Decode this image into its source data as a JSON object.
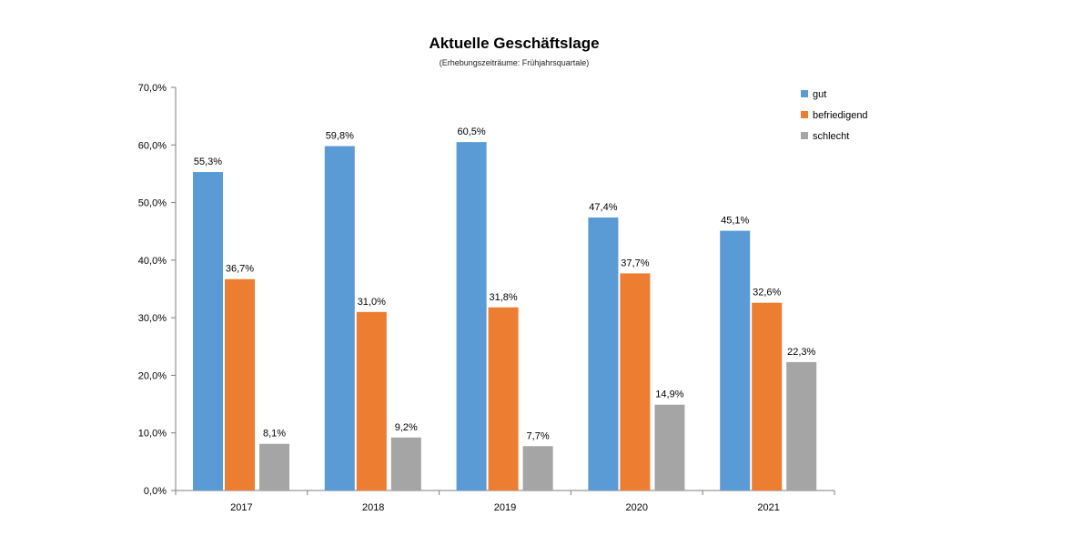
{
  "chart_data": {
    "type": "bar",
    "title": "Aktuelle Geschäftslage",
    "subtitle": "(Erhebungszeiträume: Frühjahrsquartale)",
    "categories": [
      "2017",
      "2018",
      "2019",
      "2020",
      "2021"
    ],
    "series": [
      {
        "name": "gut",
        "color": "#5b9bd5",
        "values": [
          55.3,
          59.8,
          60.5,
          47.4,
          45.1
        ],
        "labels": [
          "55,3%",
          "59,8%",
          "60,5%",
          "47,4%",
          "45,1%"
        ]
      },
      {
        "name": "befriedigend",
        "color": "#ed7d31",
        "values": [
          36.7,
          31.0,
          31.8,
          37.7,
          32.6
        ],
        "labels": [
          "36,7%",
          "31,0%",
          "31,8%",
          "37,7%",
          "32,6%"
        ]
      },
      {
        "name": "schlecht",
        "color": "#a5a5a5",
        "values": [
          8.1,
          9.2,
          7.7,
          14.9,
          22.3
        ],
        "labels": [
          "8,1%",
          "9,2%",
          "7,7%",
          "14,9%",
          "22,3%"
        ]
      }
    ],
    "ylim": [
      0,
      70
    ],
    "yticks": [
      0,
      10,
      20,
      30,
      40,
      50,
      60,
      70
    ],
    "ytick_labels": [
      "0,0%",
      "10,0%",
      "20,0%",
      "30,0%",
      "40,0%",
      "50,0%",
      "60,0%",
      "70,0%"
    ],
    "xlabel": "",
    "ylabel": "",
    "grid": false,
    "legend_position": "top-right"
  }
}
